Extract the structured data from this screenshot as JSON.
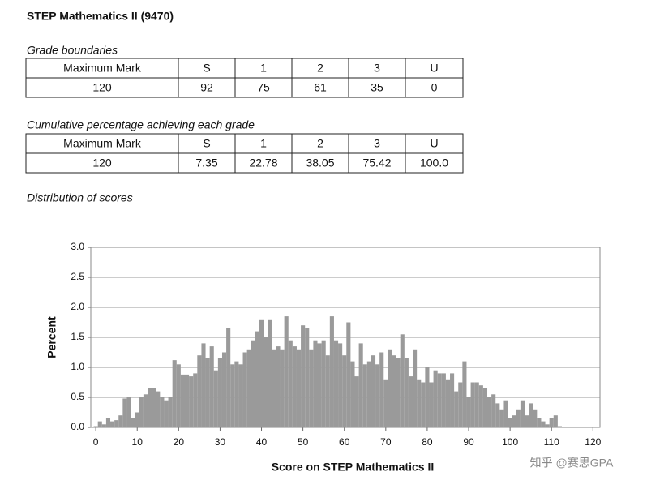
{
  "title": "STEP Mathematics II (9470)",
  "grade_boundaries": {
    "caption": "Grade boundaries",
    "header": [
      "Maximum Mark",
      "S",
      "1",
      "2",
      "3",
      "U"
    ],
    "rows": [
      [
        "120",
        "92",
        "75",
        "61",
        "35",
        "0"
      ]
    ]
  },
  "cumulative": {
    "caption": "Cumulative percentage achieving each grade",
    "header": [
      "Maximum Mark",
      "S",
      "1",
      "2",
      "3",
      "U"
    ],
    "rows": [
      [
        "120",
        "7.35",
        "22.78",
        "38.05",
        "75.42",
        "100.0"
      ]
    ]
  },
  "distribution_caption": "Distribution of scores",
  "chart_data": {
    "type": "histogram",
    "x_label": "Score on STEP Mathematics II",
    "y_label": "Percent",
    "color": "#9a9a9a",
    "grid": true,
    "xlim": [
      -1.2,
      121.7
    ],
    "ylim": [
      0,
      3
    ],
    "xticks": [
      0,
      10,
      20,
      30,
      40,
      50,
      60,
      70,
      80,
      90,
      100,
      110,
      120
    ],
    "yticks": [
      {
        "value": 0,
        "label": "0.0"
      },
      0.5,
      {
        "value": 1,
        "label": "1.0"
      },
      1.5,
      {
        "value": 2,
        "label": "2.0"
      },
      2.5,
      {
        "value": 3,
        "label": "3.0"
      }
    ],
    "bins": [
      -0.5,
      0.5,
      1.5,
      2.5,
      3.5,
      4.5,
      5.5,
      6.5,
      7.5,
      8.5,
      9.5,
      10.5,
      11.5,
      12.5,
      13.5,
      14.5,
      15.5,
      16.5,
      17.5,
      18.5,
      19.5,
      20.5,
      21.5,
      22.5,
      23.5,
      24.5,
      25.5,
      26.5,
      27.5,
      28.5,
      29.5,
      30.5,
      31.5,
      32.5,
      33.5,
      34.5,
      35.5,
      36.5,
      37.5,
      38.5,
      39.5,
      40.5,
      41.5,
      42.5,
      43.5,
      44.5,
      45.5,
      46.5,
      47.5,
      48.5,
      49.5,
      50.5,
      51.5,
      52.5,
      53.5,
      54.5,
      55.5,
      56.5,
      57.5,
      58.5,
      59.5,
      60.5,
      61.5,
      62.5,
      63.5,
      64.5,
      65.5,
      66.5,
      67.5,
      68.5,
      69.5,
      70.5,
      71.5,
      72.5,
      73.5,
      74.5,
      75.5,
      76.5,
      77.5,
      78.5,
      79.5,
      80.5,
      81.5,
      82.5,
      83.5,
      84.5,
      85.5,
      86.5,
      87.5,
      88.5,
      89.5,
      90.5,
      91.5,
      92.5,
      93.5,
      94.5,
      95.5,
      96.5,
      97.5,
      98.5,
      99.5,
      100.5,
      101.5,
      102.5,
      103.5,
      104.5,
      105.5,
      106.5,
      107.5,
      108.5,
      109.5,
      110.5,
      111.5,
      112.5
    ],
    "counts": [
      0.02,
      0.1,
      0.05,
      0.15,
      0.1,
      0.12,
      0.2,
      0.48,
      0.5,
      0.15,
      0.25,
      0.5,
      0.55,
      0.65,
      0.65,
      0.6,
      0.5,
      0.45,
      0.5,
      1.12,
      1.05,
      0.88,
      0.88,
      0.85,
      0.9,
      1.2,
      1.4,
      1.15,
      1.35,
      0.95,
      1.15,
      1.25,
      1.65,
      1.05,
      1.1,
      1.05,
      1.25,
      1.3,
      1.45,
      1.6,
      1.8,
      1.5,
      1.8,
      1.3,
      1.35,
      1.3,
      1.85,
      1.45,
      1.35,
      1.3,
      1.7,
      1.65,
      1.3,
      1.45,
      1.4,
      1.45,
      1.2,
      1.85,
      1.45,
      1.4,
      1.2,
      1.75,
      1.1,
      0.85,
      1.4,
      1.05,
      1.1,
      1.2,
      1.05,
      1.25,
      0.8,
      1.3,
      1.2,
      1.15,
      1.55,
      1.15,
      0.85,
      1.3,
      0.8,
      0.75,
      1.0,
      0.75,
      0.95,
      0.9,
      0.9,
      0.8,
      0.9,
      0.6,
      0.75,
      1.1,
      0.5,
      0.75,
      0.75,
      0.7,
      0.65,
      0.5,
      0.55,
      0.4,
      0.3,
      0.45,
      0.15,
      0.2,
      0.3,
      0.45,
      0.2,
      0.4,
      0.3,
      0.15,
      0.1,
      0.05,
      0.15,
      0.2,
      0.02
    ]
  },
  "watermark": "知乎 @赛思GPA"
}
